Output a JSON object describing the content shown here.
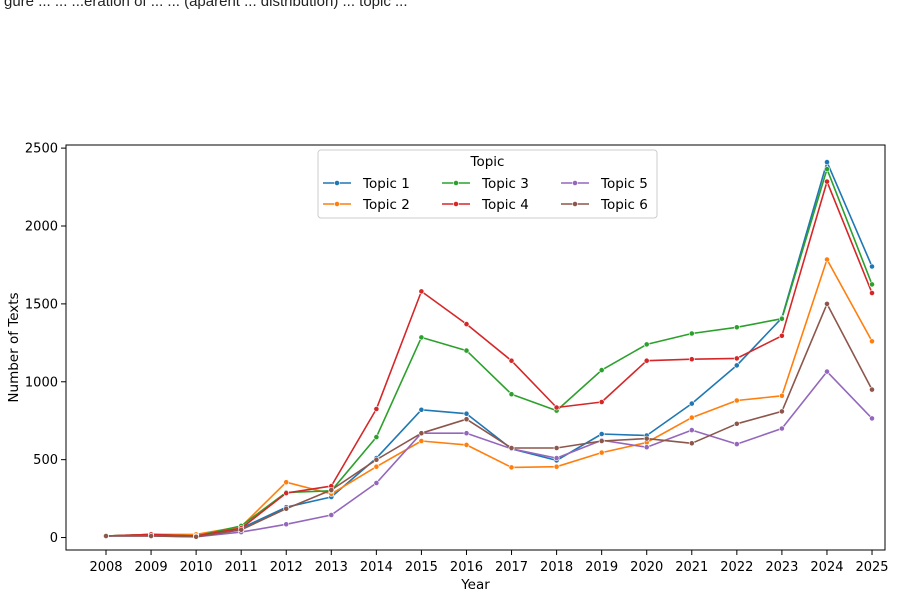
{
  "caption": "gure ... ... ...eration of ... ... (aparent ... distribution) ... topic ...",
  "colors": {
    "Topic 1": "#1f77b4",
    "Topic 2": "#ff7f0e",
    "Topic 3": "#2ca02c",
    "Topic 4": "#d62728",
    "Topic 5": "#9467bd",
    "Topic 6": "#8c564b"
  },
  "chart_data": {
    "type": "line",
    "title": "",
    "xlabel": "Year",
    "ylabel": "Number of Texts",
    "x": [
      2008,
      2009,
      2010,
      2011,
      2012,
      2013,
      2014,
      2015,
      2016,
      2017,
      2018,
      2019,
      2020,
      2021,
      2022,
      2023,
      2024,
      2025
    ],
    "xticks": [
      "2008",
      "2009",
      "2010",
      "2011",
      "2012",
      "2013",
      "2014",
      "2015",
      "2016",
      "2017",
      "2018",
      "2019",
      "2020",
      "2021",
      "2022",
      "2023",
      "2024",
      "2025"
    ],
    "ylim": [
      -80,
      2520
    ],
    "yticks": [
      0,
      500,
      1000,
      1500,
      2000,
      2500
    ],
    "ytick_labels": [
      "0",
      "500",
      "1000",
      "1500",
      "2000",
      "2500"
    ],
    "grid": false,
    "legend": {
      "title": "Topic",
      "placement": "top-center",
      "columns": 3
    },
    "series": [
      {
        "name": "Topic 1",
        "values": [
          10,
          20,
          15,
          60,
          195,
          260,
          510,
          820,
          795,
          570,
          495,
          665,
          655,
          860,
          1105,
          1410,
          2410,
          1740
        ]
      },
      {
        "name": "Topic 2",
        "values": [
          10,
          20,
          20,
          70,
          355,
          280,
          455,
          620,
          595,
          450,
          455,
          545,
          610,
          770,
          880,
          910,
          1785,
          1260
        ]
      },
      {
        "name": "Topic 3",
        "values": [
          10,
          20,
          10,
          75,
          290,
          300,
          645,
          1285,
          1200,
          920,
          815,
          1075,
          1240,
          1310,
          1350,
          1405,
          2365,
          1625
        ]
      },
      {
        "name": "Topic 4",
        "values": [
          10,
          20,
          10,
          60,
          285,
          330,
          825,
          1580,
          1370,
          1135,
          835,
          870,
          1135,
          1145,
          1150,
          1295,
          2285,
          1570
        ]
      },
      {
        "name": "Topic 5",
        "values": [
          10,
          10,
          5,
          35,
          85,
          145,
          350,
          670,
          670,
          570,
          510,
          625,
          580,
          690,
          600,
          700,
          1065,
          765
        ]
      },
      {
        "name": "Topic 6",
        "values": [
          10,
          10,
          5,
          50,
          185,
          305,
          500,
          670,
          760,
          575,
          575,
          620,
          635,
          605,
          730,
          810,
          1500,
          950
        ]
      }
    ]
  }
}
